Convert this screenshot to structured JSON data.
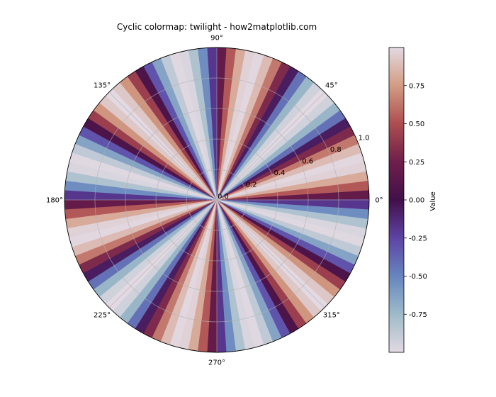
{
  "chart_data": {
    "type": "polar-heatmap",
    "title": "Cyclic colormap: twilight - how2matplotlib.com",
    "colormap": "twilight",
    "function": "sin(6*theta)",
    "theta_tick_labels": [
      "0°",
      "45°",
      "90°",
      "135°",
      "180°",
      "225°",
      "270°",
      "315°"
    ],
    "theta_ticks_deg": [
      0,
      45,
      90,
      135,
      180,
      225,
      270,
      315
    ],
    "r_tick_labels": [
      "0.0",
      "0.2",
      "0.4",
      "0.6",
      "0.8",
      "1.0"
    ],
    "r_ticks": [
      0.0,
      0.2,
      0.4,
      0.6,
      0.8,
      1.0
    ],
    "r_lim": [
      0,
      1
    ],
    "r_label_angle_deg": 22.5,
    "n_angular_sectors": 100,
    "colorbar": {
      "label": "Value",
      "range": [
        -1,
        1
      ],
      "tick_labels": [
        "0.75",
        "0.50",
        "0.25",
        "0.00",
        "-0.25",
        "-0.50",
        "-0.75"
      ],
      "ticks": [
        0.75,
        0.5,
        0.25,
        0.0,
        -0.25,
        -0.5,
        -0.75
      ]
    },
    "grid": true,
    "colormap_stops": [
      "#e2d9e2",
      "#9ebbc9",
      "#6785be",
      "#5e43a5",
      "#421049",
      "#6f1f4b",
      "#ae4d51",
      "#d39c83",
      "#e2d9e2"
    ]
  }
}
